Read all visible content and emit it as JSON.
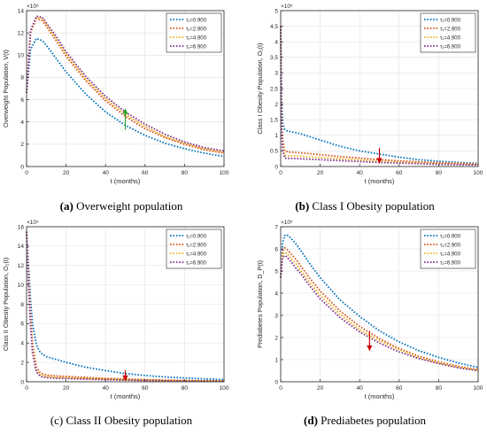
{
  "panels": [
    {
      "caption_label": "(a)",
      "caption_text": "Overweight population",
      "caption_bold": true
    },
    {
      "caption_label": "(b)",
      "caption_text": "Class I Obesity population",
      "caption_bold": true
    },
    {
      "caption_label": "(c)",
      "caption_text": "Class II Obesity population",
      "caption_bold": false
    },
    {
      "caption_label": "(d)",
      "caption_text": "Prediabetes population",
      "caption_bold": true
    }
  ],
  "colors": {
    "series": [
      "#0072BD",
      "#D95319",
      "#EDB120",
      "#7E2F8E"
    ],
    "arrow_up": "#2ca02c",
    "arrow_down": "#cc0000",
    "grid": "#e0e0e0"
  },
  "chart_data": [
    {
      "type": "line",
      "xlabel": "t (months)",
      "ylabel": "Overweight Population, V(t)",
      "exponent": "×10⁶",
      "xlim": [
        0,
        100
      ],
      "ylim": [
        0,
        14
      ],
      "xticks": [
        0,
        20,
        40,
        60,
        80,
        100
      ],
      "yticks": [
        0,
        2,
        4,
        6,
        8,
        10,
        12,
        14
      ],
      "grid": true,
      "legend_position": "top-right",
      "arrow": {
        "direction": "up",
        "x": 50,
        "y_from": 3.3,
        "y_to": 5.2
      },
      "x": [
        0,
        2,
        5,
        8,
        10,
        15,
        20,
        30,
        40,
        50,
        60,
        70,
        80,
        90,
        100
      ],
      "series": [
        {
          "name": "τ₁=0.900",
          "values": [
            6.6,
            10.5,
            11.5,
            11.3,
            10.9,
            9.7,
            8.5,
            6.5,
            4.9,
            3.7,
            2.8,
            2.1,
            1.6,
            1.2,
            0.9
          ]
        },
        {
          "name": "τ₁=2.900",
          "values": [
            6.6,
            12.0,
            13.3,
            13.1,
            12.6,
            11.3,
            9.9,
            7.7,
            5.9,
            4.5,
            3.4,
            2.6,
            2.0,
            1.5,
            1.2
          ]
        },
        {
          "name": "τ₁=4.900",
          "values": [
            6.6,
            12.1,
            13.4,
            13.3,
            12.8,
            11.5,
            10.1,
            7.9,
            6.1,
            4.7,
            3.6,
            2.7,
            2.1,
            1.6,
            1.3
          ]
        },
        {
          "name": "τ₁=6.900",
          "values": [
            6.6,
            12.2,
            13.5,
            13.4,
            12.9,
            11.7,
            10.3,
            8.1,
            6.3,
            4.9,
            3.8,
            2.9,
            2.2,
            1.7,
            1.4
          ]
        }
      ]
    },
    {
      "type": "line",
      "xlabel": "t (months)",
      "ylabel": "Class I Obesity Population, O₁(t)",
      "exponent": "×10⁶",
      "xlim": [
        0,
        100
      ],
      "ylim": [
        0,
        5
      ],
      "xticks": [
        0,
        20,
        40,
        60,
        80,
        100
      ],
      "yticks": [
        0,
        0.5,
        1,
        1.5,
        2,
        2.5,
        3,
        3.5,
        4,
        4.5,
        5
      ],
      "grid": true,
      "legend_position": "top-right",
      "arrow": {
        "direction": "down",
        "x": 50,
        "y_from": 0.6,
        "y_to": 0.1
      },
      "x": [
        0,
        0.5,
        1,
        2,
        3,
        5,
        10,
        20,
        30,
        40,
        50,
        60,
        70,
        80,
        90,
        100
      ],
      "series": [
        {
          "name": "τ₁=0.900",
          "values": [
            4.5,
            2.2,
            1.4,
            1.2,
            1.15,
            1.12,
            1.05,
            0.85,
            0.65,
            0.5,
            0.4,
            0.3,
            0.22,
            0.17,
            0.13,
            0.1
          ]
        },
        {
          "name": "τ₁=2.900",
          "values": [
            4.5,
            1.6,
            0.9,
            0.5,
            0.48,
            0.46,
            0.44,
            0.38,
            0.32,
            0.27,
            0.22,
            0.18,
            0.15,
            0.12,
            0.1,
            0.08
          ]
        },
        {
          "name": "τ₁=4.900",
          "values": [
            4.5,
            1.4,
            0.7,
            0.36,
            0.35,
            0.34,
            0.33,
            0.29,
            0.25,
            0.21,
            0.17,
            0.14,
            0.11,
            0.09,
            0.07,
            0.06
          ]
        },
        {
          "name": "τ₁=6.900",
          "values": [
            4.5,
            1.2,
            0.55,
            0.27,
            0.26,
            0.26,
            0.25,
            0.22,
            0.19,
            0.16,
            0.13,
            0.11,
            0.09,
            0.07,
            0.06,
            0.05
          ]
        }
      ]
    },
    {
      "type": "line",
      "xlabel": "t (months)",
      "ylabel": "Class II Obesity Population, O₂(t)",
      "exponent": "×10⁵",
      "xlim": [
        0,
        100
      ],
      "ylim": [
        0,
        16
      ],
      "xticks": [
        0,
        20,
        40,
        60,
        80,
        100
      ],
      "yticks": [
        0,
        2,
        4,
        6,
        8,
        10,
        12,
        14,
        16
      ],
      "grid": true,
      "legend_position": "top-right",
      "arrow": {
        "direction": "down",
        "x": 50,
        "y_from": 1.2,
        "y_to": 0.1
      },
      "x": [
        0,
        1,
        2,
        3,
        5,
        7,
        10,
        15,
        20,
        30,
        40,
        50,
        60,
        70,
        80,
        90,
        100
      ],
      "series": [
        {
          "name": "τ₁=0.900",
          "values": [
            15.5,
            12.0,
            8.5,
            6.0,
            3.8,
            3.0,
            2.6,
            2.3,
            2.0,
            1.5,
            1.15,
            0.85,
            0.65,
            0.5,
            0.38,
            0.3,
            0.22
          ]
        },
        {
          "name": "τ₁=2.900",
          "values": [
            15.5,
            11.0,
            7.0,
            4.0,
            1.5,
            0.9,
            0.7,
            0.6,
            0.55,
            0.45,
            0.36,
            0.28,
            0.22,
            0.17,
            0.13,
            0.1,
            0.08
          ]
        },
        {
          "name": "τ₁=4.900",
          "values": [
            15.5,
            10.5,
            6.3,
            3.5,
            1.2,
            0.7,
            0.55,
            0.45,
            0.42,
            0.35,
            0.28,
            0.22,
            0.17,
            0.13,
            0.1,
            0.08,
            0.06
          ]
        },
        {
          "name": "τ₁=6.900",
          "values": [
            15.5,
            10.0,
            5.8,
            3.0,
            1.0,
            0.55,
            0.42,
            0.36,
            0.33,
            0.27,
            0.22,
            0.17,
            0.13,
            0.1,
            0.08,
            0.06,
            0.05
          ]
        }
      ]
    },
    {
      "type": "line",
      "xlabel": "t (months)",
      "ylabel": "Prediabetes Population, D_P(t)",
      "exponent": "×10⁶",
      "xlim": [
        0,
        100
      ],
      "ylim": [
        0,
        7
      ],
      "xticks": [
        0,
        20,
        40,
        60,
        80,
        100
      ],
      "yticks": [
        0,
        1,
        2,
        3,
        4,
        5,
        6,
        7
      ],
      "grid": true,
      "legend_position": "top-right",
      "arrow": {
        "direction": "down",
        "x": 45,
        "y_from": 2.3,
        "y_to": 1.4
      },
      "x": [
        0,
        1,
        2,
        3,
        5,
        8,
        10,
        15,
        20,
        30,
        40,
        50,
        60,
        70,
        80,
        90,
        100
      ],
      "series": [
        {
          "name": "τ₁=0.900",
          "values": [
            4.7,
            6.3,
            6.6,
            6.65,
            6.5,
            6.2,
            5.95,
            5.3,
            4.7,
            3.7,
            2.95,
            2.3,
            1.8,
            1.4,
            1.1,
            0.85,
            0.65
          ]
        },
        {
          "name": "τ₁=2.900",
          "values": [
            4.7,
            5.9,
            6.05,
            6.0,
            5.8,
            5.5,
            5.25,
            4.65,
            4.1,
            3.2,
            2.5,
            1.95,
            1.5,
            1.15,
            0.9,
            0.7,
            0.55
          ]
        },
        {
          "name": "τ₁=4.900",
          "values": [
            4.7,
            5.75,
            5.85,
            5.8,
            5.6,
            5.3,
            5.05,
            4.45,
            3.9,
            3.05,
            2.35,
            1.85,
            1.45,
            1.1,
            0.85,
            0.66,
            0.52
          ]
        },
        {
          "name": "τ₁=6.900",
          "values": [
            4.7,
            5.6,
            5.7,
            5.65,
            5.45,
            5.1,
            4.9,
            4.3,
            3.75,
            2.9,
            2.25,
            1.75,
            1.35,
            1.05,
            0.82,
            0.63,
            0.5
          ]
        }
      ]
    }
  ]
}
